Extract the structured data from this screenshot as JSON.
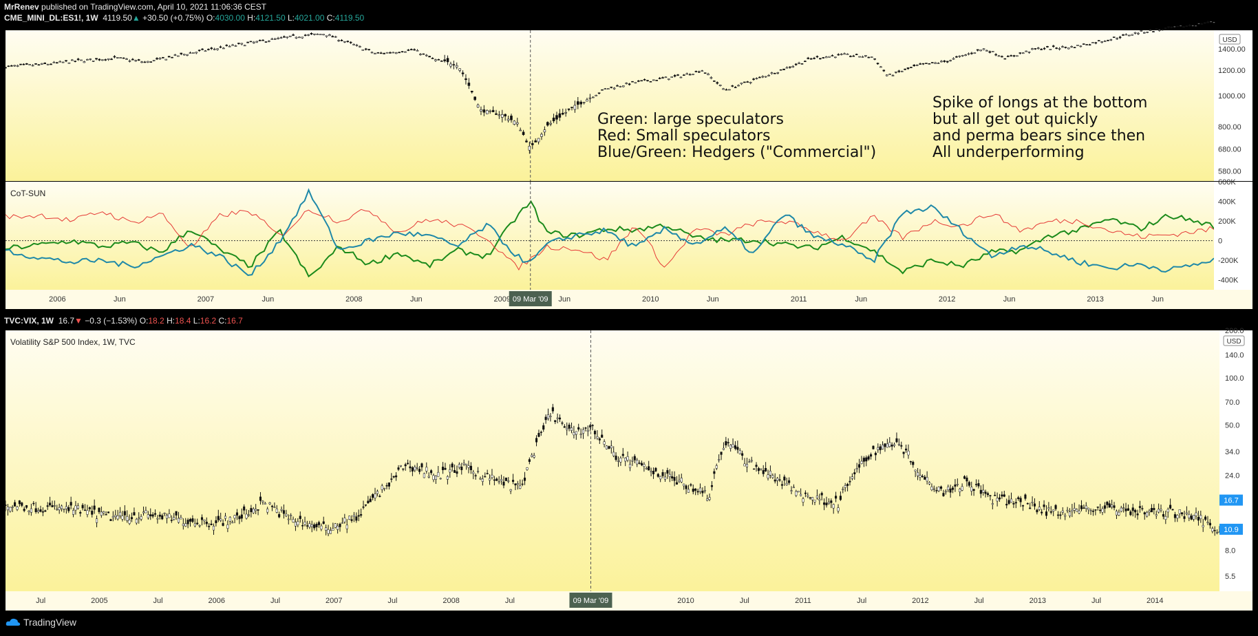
{
  "header": {
    "publisher": "MrRenev",
    "published_text": "published on TradingView.com, April 10, 2021 11:06:36 CEST",
    "symbol": "CME_MINI_DL:ES1!, 1W",
    "last": "4119.50",
    "change": "+30.50 (+0.75%)",
    "o_label": "O:",
    "o": "4030.00",
    "h_label": "H:",
    "h": "4121.50",
    "l_label": "L:",
    "l": "4021.00",
    "c_label": "C:",
    "c": "4119.50"
  },
  "vix_header": {
    "symbol": "TVC:VIX, 1W",
    "last": "16.7",
    "change": "−0.3 (−1.53%)",
    "o_label": "O:",
    "o": "18.2",
    "h_label": "H:",
    "h": "18.4",
    "l_label": "L:",
    "l": "16.2",
    "c_label": "C:",
    "c": "16.7"
  },
  "annotations": {
    "legend_note": "Green: large speculators\nRed: Small speculators\nBlue/Green: Hedgers (\"Commercial\")",
    "spike_note": "Spike of longs at the bottom\nbut all get out quickly\nand perma bears since then\nAll underperforming"
  },
  "footer": {
    "brand": "TradingView"
  },
  "colors": {
    "up": "#26a69a",
    "down": "#ef5350",
    "large_spec": "#1b8a1b",
    "small_spec": "#e53935",
    "hedgers": "#1e88a8",
    "badge": "#2196f3",
    "crosshair_badge": "#4c6150"
  },
  "chart_data": [
    {
      "type": "line",
      "title": "CME_MINI_DL:ES1!, 1W",
      "scale": "log",
      "currency": "USD",
      "yticks": [
        "580.00",
        "680.00",
        "800.00",
        "1000.00",
        "1200.00",
        "1400.00"
      ],
      "ytick_values": [
        580,
        680,
        800,
        1000,
        1200,
        1400
      ],
      "ylim": [
        540,
        1600
      ],
      "xlim": [
        2005.65,
        2013.8
      ],
      "x": [
        2005.65,
        2005.9,
        2006.1,
        2006.4,
        2006.6,
        2006.9,
        2007.1,
        2007.3,
        2007.6,
        2007.8,
        2008.0,
        2008.15,
        2008.4,
        2008.55,
        2008.7,
        2008.85,
        2009.0,
        2009.1,
        2009.19,
        2009.3,
        2009.45,
        2009.7,
        2009.9,
        2010.2,
        2010.35,
        2010.5,
        2010.7,
        2010.9,
        2011.1,
        2011.3,
        2011.5,
        2011.6,
        2011.8,
        2012.0,
        2012.25,
        2012.4,
        2012.6,
        2012.85,
        2013.1,
        2013.3,
        2013.5,
        2013.8
      ],
      "close": [
        1230,
        1250,
        1280,
        1310,
        1270,
        1360,
        1410,
        1460,
        1530,
        1560,
        1440,
        1350,
        1390,
        1290,
        1250,
        900,
        870,
        820,
        680,
        800,
        900,
        1050,
        1100,
        1150,
        1200,
        1040,
        1120,
        1210,
        1310,
        1340,
        1320,
        1150,
        1240,
        1280,
        1400,
        1310,
        1400,
        1420,
        1500,
        1580,
        1620,
        1700
      ],
      "crosshair_label": "09 Mar '09"
    },
    {
      "type": "line",
      "title": "CoT-SUN",
      "yticks": [
        "600K",
        "400K",
        "200K",
        "0",
        "-200K",
        "-400K"
      ],
      "ytick_values": [
        600000,
        400000,
        200000,
        0,
        -200000,
        -400000
      ],
      "ylim": [
        -500000,
        600000
      ],
      "xticks": [
        "2006",
        "Jun",
        "2007",
        "Jun",
        "2008",
        "Jun",
        "2009",
        "Jun",
        "2010",
        "Jun",
        "2011",
        "Jun",
        "2012",
        "Jun",
        "2013",
        "Jun"
      ],
      "xtick_values": [
        2006.0,
        2006.42,
        2007.0,
        2007.42,
        2008.0,
        2008.42,
        2009.0,
        2009.42,
        2010.0,
        2010.42,
        2011.0,
        2011.42,
        2012.0,
        2012.42,
        2013.0,
        2013.42
      ],
      "xlim": [
        2005.65,
        2013.8
      ],
      "x": [
        2005.65,
        2005.9,
        2006.1,
        2006.3,
        2006.5,
        2006.7,
        2006.9,
        2007.1,
        2007.3,
        2007.5,
        2007.7,
        2007.9,
        2008.1,
        2008.3,
        2008.5,
        2008.7,
        2008.9,
        2009.1,
        2009.19,
        2009.3,
        2009.5,
        2009.7,
        2009.9,
        2010.1,
        2010.3,
        2010.5,
        2010.7,
        2010.9,
        2011.1,
        2011.3,
        2011.5,
        2011.7,
        2011.9,
        2012.1,
        2012.3,
        2012.5,
        2012.7,
        2012.9,
        2013.1,
        2013.3,
        2013.5,
        2013.8
      ],
      "series": [
        {
          "name": "Large speculators",
          "values": [
            -80000,
            -40000,
            0,
            -60000,
            -20000,
            -120000,
            120000,
            -100000,
            -260000,
            100000,
            -380000,
            -60000,
            -240000,
            -120000,
            -260000,
            -100000,
            -160000,
            250000,
            390000,
            80000,
            50000,
            120000,
            110000,
            160000,
            30000,
            0,
            10000,
            -40000,
            -80000,
            40000,
            -100000,
            -320000,
            -200000,
            -260000,
            -120000,
            -100000,
            60000,
            110000,
            220000,
            120000,
            260000,
            150000
          ]
        },
        {
          "name": "Small speculators",
          "values": [
            240000,
            260000,
            200000,
            300000,
            180000,
            280000,
            -80000,
            260000,
            300000,
            40000,
            320000,
            200000,
            320000,
            80000,
            220000,
            160000,
            30000,
            -280000,
            -190000,
            -60000,
            -80000,
            -200000,
            160000,
            -280000,
            120000,
            60000,
            180000,
            200000,
            100000,
            0,
            240000,
            30000,
            200000,
            150000,
            280000,
            100000,
            200000,
            200000,
            100000,
            40000,
            60000,
            120000
          ]
        },
        {
          "name": "Hedgers (Commercial)",
          "values": [
            -100000,
            -180000,
            -220000,
            -200000,
            -260000,
            -160000,
            -40000,
            -160000,
            -360000,
            0,
            500000,
            -100000,
            0,
            80000,
            50000,
            -60000,
            160000,
            -160000,
            -230000,
            -40000,
            60000,
            100000,
            -70000,
            120000,
            -40000,
            120000,
            -140000,
            280000,
            40000,
            -40000,
            -220000,
            280000,
            340000,
            100000,
            -160000,
            -40000,
            -120000,
            -220000,
            -280000,
            -240000,
            -300000,
            -200000
          ]
        }
      ],
      "zero_line": true,
      "crosshair_label": "09 Mar '09"
    },
    {
      "type": "line",
      "title": "Volatility S&P 500 Index, 1W, TVC",
      "scale": "log",
      "currency": "USD",
      "yticks": [
        "200.0",
        "140.0",
        "100.0",
        "70.0",
        "50.0",
        "34.0",
        "24.0",
        "8.0",
        "5.5"
      ],
      "ytick_values": [
        200,
        140,
        100,
        70,
        50,
        34,
        24,
        8,
        5.5
      ],
      "ylim": [
        4.4,
        200
      ],
      "price_badges": [
        "16.7",
        "10.9"
      ],
      "price_badge_values": [
        16.7,
        10.9
      ],
      "xticks": [
        "Jul",
        "2005",
        "Jul",
        "2006",
        "Jul",
        "2007",
        "Jul",
        "2008",
        "Jul",
        "2010",
        "Jul",
        "2011",
        "Jul",
        "2012",
        "Jul",
        "2013",
        "Jul",
        "2014"
      ],
      "xtick_values": [
        2004.5,
        2005.0,
        2005.5,
        2006.0,
        2006.5,
        2007.0,
        2007.5,
        2008.0,
        2008.5,
        2010.0,
        2010.5,
        2011.0,
        2011.5,
        2012.0,
        2012.5,
        2013.0,
        2013.5,
        2014.0
      ],
      "xlim": [
        2004.2,
        2014.55
      ],
      "x": [
        2004.2,
        2004.5,
        2004.8,
        2005.1,
        2005.4,
        2005.7,
        2006.0,
        2006.2,
        2006.4,
        2006.6,
        2006.9,
        2007.0,
        2007.2,
        2007.5,
        2007.6,
        2007.9,
        2008.1,
        2008.4,
        2008.6,
        2008.75,
        2008.85,
        2009.0,
        2009.19,
        2009.4,
        2009.7,
        2010.0,
        2010.2,
        2010.35,
        2010.5,
        2010.8,
        2011.0,
        2011.3,
        2011.6,
        2011.8,
        2012.0,
        2012.2,
        2012.4,
        2012.6,
        2012.9,
        2013.1,
        2013.4,
        2013.6,
        2013.9,
        2014.1,
        2014.3,
        2014.55
      ],
      "close": [
        15.5,
        15.0,
        14.5,
        13.0,
        13.5,
        12.5,
        12.0,
        13.0,
        16.0,
        13.0,
        11.0,
        11.5,
        13.0,
        22.0,
        28.0,
        24.0,
        27.0,
        22.0,
        20.0,
        40.0,
        60.0,
        45.0,
        48.0,
        32.0,
        26.0,
        21.0,
        18.0,
        40.0,
        30.0,
        22.0,
        18.0,
        16.0,
        34.0,
        40.0,
        24.0,
        19.0,
        22.0,
        17.0,
        16.0,
        14.0,
        14.5,
        15.0,
        14.0,
        14.0,
        13.5,
        10.9
      ],
      "crosshair_label": "09 Mar '09"
    }
  ]
}
